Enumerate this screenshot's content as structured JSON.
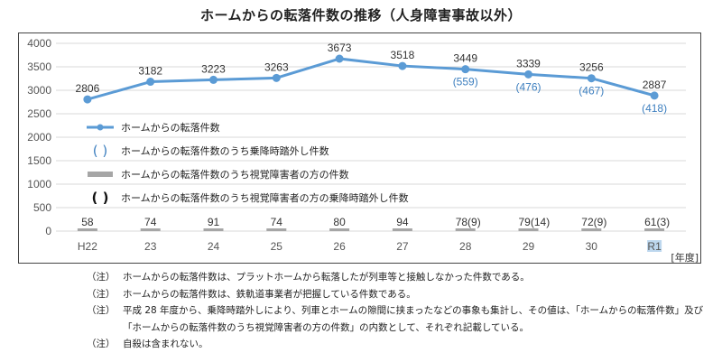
{
  "title": "ホームからの転落件数の推移（人身障害事故以外）",
  "unit_label": "[年度]",
  "legend": [
    {
      "symbol": "line-marker",
      "label": "ホームからの転落件数"
    },
    {
      "symbol": "blue-parens",
      "label": "ホームからの転落件数のうち乗降時踏外し件数"
    },
    {
      "symbol": "gray-bar",
      "label": "ホームからの転落件数のうち視覚障害者の方の件数"
    },
    {
      "symbol": "black-parens",
      "label": "ホームからの転落件数のうち視覚障害者の方の乗降時踏外し件数"
    }
  ],
  "colors": {
    "line": "#5b9bd5",
    "paren_blue": "#3d7fbf",
    "bar_gray": "#a6a6a6",
    "grid": "#d9d9d9",
    "highlight_r1": "#bdd7ee"
  },
  "chart_data": {
    "type": "line",
    "title": "ホームからの転落件数の推移（人身障害事故以外）",
    "xlabel": "[年度]",
    "ylabel": "",
    "ylim": [
      0,
      4000
    ],
    "yticks": [
      0,
      500,
      1000,
      1500,
      2000,
      2500,
      3000,
      3500,
      4000
    ],
    "grid": true,
    "legend_position": "inside-left",
    "categories": [
      "H22",
      "23",
      "24",
      "25",
      "26",
      "27",
      "28",
      "29",
      "30",
      "R1"
    ],
    "series": [
      {
        "name": "ホームからの転落件数",
        "type": "line",
        "values": [
          2806,
          3182,
          3223,
          3263,
          3673,
          3518,
          3449,
          3339,
          3256,
          2887
        ]
      },
      {
        "name": "ホームからの転落件数のうち乗降時踏外し件数",
        "type": "annotation",
        "values": [
          null,
          null,
          null,
          null,
          null,
          null,
          559,
          476,
          467,
          418
        ]
      },
      {
        "name": "ホームからの転落件数のうち視覚障害者の方の件数",
        "type": "bar",
        "values": [
          58,
          74,
          91,
          74,
          80,
          94,
          78,
          79,
          72,
          61
        ]
      },
      {
        "name": "ホームからの転落件数のうち視覚障害者の方の乗降時踏外し件数",
        "type": "annotation",
        "values": [
          null,
          null,
          null,
          null,
          null,
          null,
          9,
          14,
          9,
          3
        ]
      }
    ]
  },
  "notes": [
    {
      "tag": "（注）",
      "text": "ホームからの転落件数は、プラットホームから転落したが列車等と接触しなかった件数である。"
    },
    {
      "tag": "（注）",
      "text": "ホームからの転落件数は、鉄軌道事業者が把握している件数である。"
    },
    {
      "tag": "（注）",
      "text": "平成 28 年度から、乗降時踏外しにより、列車とホームの隙間に挟まったなどの事象も集計し、その値は、「ホームからの転落件数」及び「ホームからの転落件数のうち視覚障害者の方の件数」の内数として、それぞれ記載している。"
    },
    {
      "tag": "（注）",
      "text": "自殺は含まれない。"
    }
  ]
}
